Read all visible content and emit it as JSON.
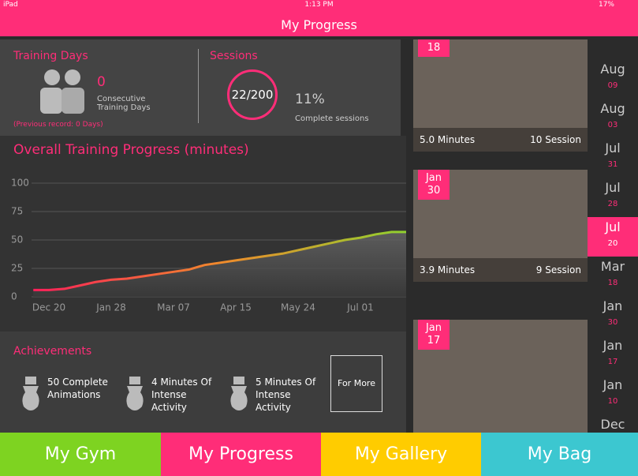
{
  "status_bar": {
    "device": "iPad",
    "time": "1:13 PM",
    "battery": "17%"
  },
  "header": {
    "title": "My Progress"
  },
  "training_days": {
    "title": "Training Days",
    "value": "0",
    "label": "Consecutive Training Days",
    "previous_record": "(Previous record: 0 Days)"
  },
  "sessions": {
    "title": "Sessions",
    "ring": "22/200",
    "percent": "11%",
    "label": "Complete sessions"
  },
  "chart_data": {
    "type": "line",
    "title": "Overall Training Progress (minutes)",
    "categories": [
      null,
      "Dec 20",
      null,
      null,
      null,
      "Jan 28",
      null,
      null,
      null,
      "Mar 07",
      null,
      null,
      null,
      "Apr 15",
      null,
      null,
      null,
      "May 24",
      null,
      null,
      null,
      "Jul 01",
      null,
      null,
      null
    ],
    "series": [
      {
        "values": [
          6,
          6,
          7,
          10,
          13,
          15,
          16,
          18,
          20,
          22,
          24,
          28,
          30,
          32,
          34,
          36,
          38,
          41,
          44,
          47,
          50,
          52,
          55,
          57,
          57
        ],
        "gradient": [
          "#ff1f5a",
          "#f08a2c",
          "#8fd12e"
        ]
      }
    ],
    "ylim": [
      0,
      100
    ],
    "yticks": [
      0,
      25,
      50,
      75,
      100
    ],
    "grid": true
  },
  "achievements": {
    "title": "Achievements",
    "items": [
      "50 Complete Animations",
      "4 Minutes Of Intense Activity",
      "5 Minutes Of Intense Activity"
    ],
    "more": "For More"
  },
  "cards": [
    {
      "day": "18",
      "minutes": "5.0 Minutes",
      "sessions": "10 Session"
    },
    {
      "month": "Jan",
      "day": "30",
      "minutes": "3.9 Minutes",
      "sessions": "9 Session"
    },
    {
      "month": "Jan",
      "day": "17"
    }
  ],
  "dates": {
    "selected": 4,
    "items": [
      {
        "month": "Aug",
        "day": "09"
      },
      {
        "month": "Aug",
        "day": "03"
      },
      {
        "month": "Jul",
        "day": "31"
      },
      {
        "month": "Jul",
        "day": "28"
      },
      {
        "month": "Jul",
        "day": "20"
      },
      {
        "month": "Mar",
        "day": "18"
      },
      {
        "month": "Jan",
        "day": "30"
      },
      {
        "month": "Jan",
        "day": "17"
      },
      {
        "month": "Jan",
        "day": "10"
      },
      {
        "month": "Dec"
      }
    ]
  },
  "tabs": [
    "My Gym",
    "My Progress",
    "My Gallery",
    "My Bag"
  ]
}
